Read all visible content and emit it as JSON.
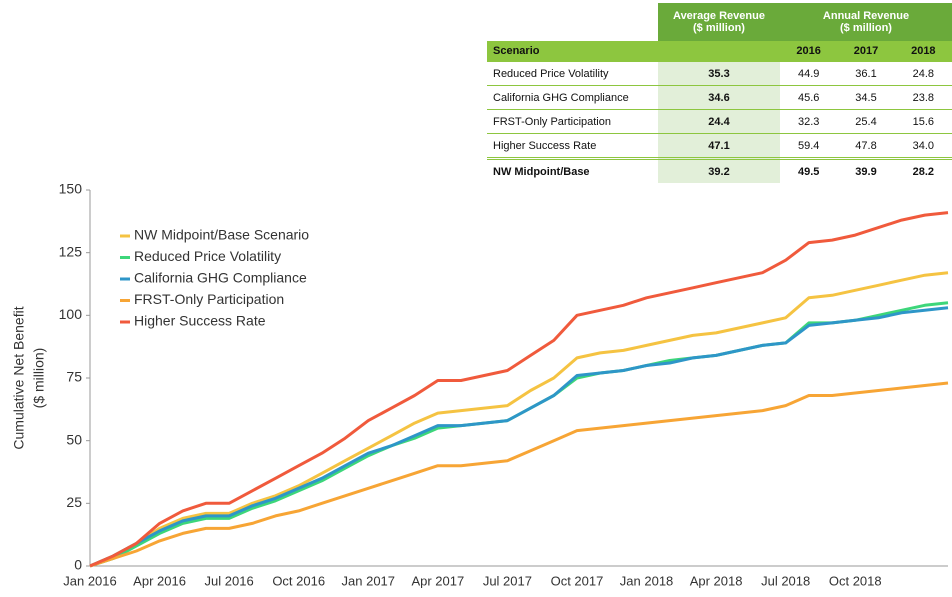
{
  "chart_data": {
    "type": "line",
    "y_label": [
      "Cumulative Net Benefit",
      "($ million)"
    ],
    "categories": [
      "Jan 2016",
      null,
      null,
      "Apr 2016",
      null,
      null,
      "Jul 2016",
      null,
      null,
      "Oct 2016",
      null,
      null,
      "Jan 2017",
      null,
      null,
      "Apr 2017",
      null,
      null,
      "Jul 2017",
      null,
      null,
      "Oct 2017",
      null,
      null,
      "Jan 2018",
      null,
      null,
      "Apr 2018",
      null,
      null,
      "Jul 2018",
      null,
      null,
      "Oct 2018",
      null,
      null,
      null,
      null
    ],
    "series": [
      {
        "name": "NW Midpoint/Base Scenario",
        "color": "#f5c342",
        "values": [
          0,
          4,
          9,
          15,
          19,
          21,
          21,
          25,
          28,
          32,
          37,
          42,
          47,
          52,
          57,
          61,
          62,
          63,
          64,
          70,
          75,
          83,
          85,
          86,
          88,
          90,
          92,
          93,
          95,
          97,
          99,
          107,
          108,
          110,
          112,
          114,
          116,
          117
        ]
      },
      {
        "name": "Reduced Price Volatility",
        "color": "#3dd67a",
        "values": [
          0,
          3,
          8,
          13,
          17,
          19,
          19,
          23,
          26,
          30,
          34,
          39,
          44,
          48,
          51,
          55,
          56,
          57,
          58,
          63,
          68,
          75,
          77,
          78,
          80,
          82,
          83,
          84,
          86,
          88,
          89,
          97,
          97,
          98,
          100,
          102,
          104,
          105
        ]
      },
      {
        "name": "California GHG Compliance",
        "color": "#2e96c8",
        "values": [
          0,
          4,
          9,
          14,
          18,
          20,
          20,
          24,
          27,
          31,
          35,
          40,
          45,
          48,
          52,
          56,
          56,
          57,
          58,
          63,
          68,
          76,
          77,
          78,
          80,
          81,
          83,
          84,
          86,
          88,
          89,
          96,
          97,
          98,
          99,
          101,
          102,
          103
        ]
      },
      {
        "name": "FRST-Only Participation",
        "color": "#f7a535",
        "values": [
          0,
          3,
          6,
          10,
          13,
          15,
          15,
          17,
          20,
          22,
          25,
          28,
          31,
          34,
          37,
          40,
          40,
          41,
          42,
          46,
          50,
          54,
          55,
          56,
          57,
          58,
          59,
          60,
          61,
          62,
          64,
          68,
          68,
          69,
          70,
          71,
          72,
          73
        ]
      },
      {
        "name": "Higher Success Rate",
        "color": "#f05a3c",
        "values": [
          0,
          4,
          9,
          17,
          22,
          25,
          25,
          30,
          35,
          40,
          45,
          51,
          58,
          63,
          68,
          74,
          74,
          76,
          78,
          84,
          90,
          100,
          102,
          104,
          107,
          109,
          111,
          113,
          115,
          117,
          122,
          129,
          130,
          132,
          135,
          138,
          140,
          141
        ]
      }
    ],
    "ylim": [
      0,
      150
    ],
    "yticks": [
      0,
      25,
      50,
      75,
      100,
      125,
      150
    ],
    "legend": "upper left"
  },
  "table": {
    "group_headers": [
      [
        "Average Revenue",
        "($ million)"
      ],
      [
        "Annual Revenue",
        "($ million)"
      ]
    ],
    "columns": [
      "Scenario",
      "2016",
      "2017",
      "2018"
    ],
    "rows": [
      [
        "Reduced Price Volatility",
        "35.3",
        "44.9",
        "36.1",
        "24.8"
      ],
      [
        "California GHG Compliance",
        "34.6",
        "45.6",
        "34.5",
        "23.8"
      ],
      [
        "FRST-Only Participation",
        "24.4",
        "32.3",
        "25.4",
        "15.6"
      ],
      [
        "Higher Success Rate",
        "47.1",
        "59.4",
        "47.8",
        "34.0"
      ],
      [
        "NW Midpoint/Base",
        "39.2",
        "49.5",
        "39.9",
        "28.2"
      ]
    ]
  }
}
